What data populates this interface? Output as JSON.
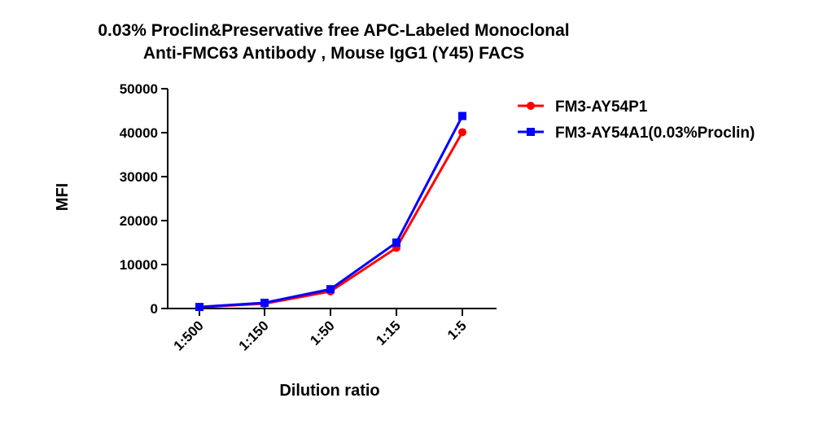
{
  "chart_data": {
    "type": "line",
    "title_lines": [
      "0.03% Proclin&Preservative free APC-Labeled Monoclonal",
      "Anti-FMC63 Antibody , Mouse IgG1 (Y45) FACS"
    ],
    "xlabel": "Dilution ratio",
    "ylabel": "MFI",
    "categories": [
      "1:500",
      "1:150",
      "1:50",
      "1:15",
      "1:5"
    ],
    "ylim": [
      0,
      50000
    ],
    "yticks": [
      "0",
      "10000",
      "20000",
      "30000",
      "40000",
      "50000"
    ],
    "legend_position": "top-right",
    "series": [
      {
        "name": "FM3-AY54P1",
        "color": "#ff0000",
        "marker": "circle",
        "values": [
          300,
          1100,
          3900,
          13800,
          40100
        ]
      },
      {
        "name": "FM3-AY54A1(0.03%Proclin)",
        "color": "#0000ff",
        "marker": "square",
        "values": [
          350,
          1300,
          4400,
          15000,
          43800
        ]
      }
    ]
  }
}
